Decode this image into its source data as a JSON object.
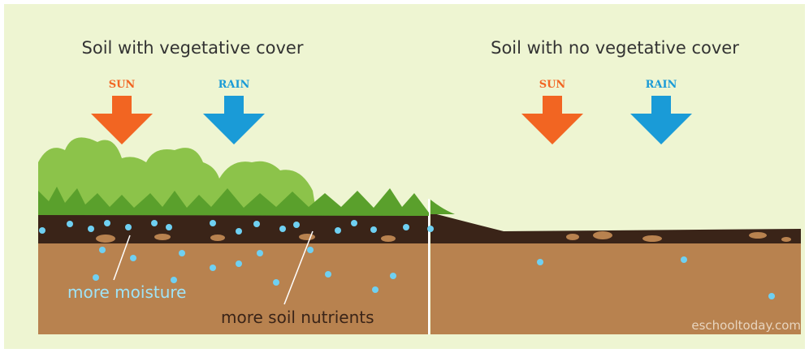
{
  "left": {
    "title": "Soil with vegetative cover",
    "sun": "SUN",
    "rain": "RAIN",
    "label_moisture": "more moisture",
    "label_nutrients": "more soil nutrients"
  },
  "right": {
    "title": "Soil with no vegetative cover",
    "sun": "SUN",
    "rain": "RAIN"
  },
  "credit": "eschooltoday.com"
}
